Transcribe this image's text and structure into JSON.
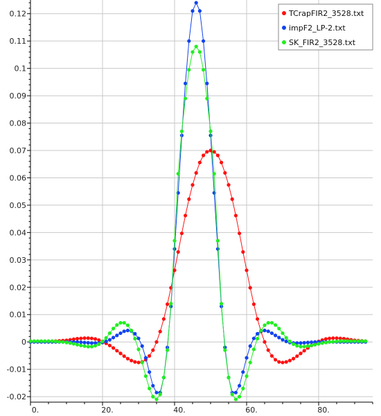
{
  "chart_data": {
    "type": "line",
    "title": "",
    "xlabel": "",
    "ylabel": "",
    "xlim": [
      0,
      95
    ],
    "ylim": [
      -0.022,
      0.125
    ],
    "grid": true,
    "legend_position": "top-right",
    "x_ticks": [
      {
        "value": 0,
        "label": "0."
      },
      {
        "value": 20,
        "label": "20."
      },
      {
        "value": 40,
        "label": "40."
      },
      {
        "value": 60,
        "label": "60."
      },
      {
        "value": 80,
        "label": "80."
      }
    ],
    "y_ticks": [
      {
        "value": -0.02,
        "label": "-0.02"
      },
      {
        "value": -0.01,
        "label": "-0.01"
      },
      {
        "value": 0,
        "label": "0"
      },
      {
        "value": 0.01,
        "label": "0.01"
      },
      {
        "value": 0.02,
        "label": "0.02"
      },
      {
        "value": 0.03,
        "label": "0.03"
      },
      {
        "value": 0.04,
        "label": "0.04"
      },
      {
        "value": 0.05,
        "label": "0.05"
      },
      {
        "value": 0.06,
        "label": "0.06"
      },
      {
        "value": 0.07,
        "label": "0.07"
      },
      {
        "value": 0.08,
        "label": "0.08"
      },
      {
        "value": 0.09,
        "label": "0.09"
      },
      {
        "value": 0.1,
        "label": "0.1"
      },
      {
        "value": 0.11,
        "label": "0.11"
      },
      {
        "value": 0.12,
        "label": "0.12"
      }
    ],
    "x": [
      0,
      1,
      2,
      3,
      4,
      5,
      6,
      7,
      8,
      9,
      10,
      11,
      12,
      13,
      14,
      15,
      16,
      17,
      18,
      19,
      20,
      21,
      22,
      23,
      24,
      25,
      26,
      27,
      28,
      29,
      30,
      31,
      32,
      33,
      34,
      35,
      36,
      37,
      38,
      39,
      40,
      41,
      42,
      43,
      44,
      45,
      46,
      47,
      48,
      49,
      50,
      51,
      52,
      53,
      54,
      55,
      56,
      57,
      58,
      59,
      60,
      61,
      62,
      63,
      64,
      65,
      66,
      67,
      68,
      69,
      70,
      71,
      72,
      73,
      74,
      75,
      76,
      77,
      78,
      79,
      80,
      81,
      82,
      83,
      84,
      85,
      86,
      87,
      88,
      89,
      90,
      91,
      92,
      93
    ],
    "series": [
      {
        "name": "TCrapFIR2_3528.txt",
        "color": "#ff1111",
        "values": [
          0.0,
          0.0001,
          0.0001,
          0.0001,
          0.0001,
          0.0002,
          0.0002,
          0.0003,
          0.0004,
          0.0005,
          0.0006,
          0.0008,
          0.001,
          0.0012,
          0.0013,
          0.0014,
          0.0014,
          0.0013,
          0.0011,
          0.0007,
          0.0002,
          -0.0005,
          -0.0013,
          -0.0022,
          -0.0032,
          -0.0042,
          -0.0052,
          -0.0061,
          -0.0068,
          -0.0073,
          -0.0075,
          -0.0073,
          -0.0065,
          -0.0051,
          -0.003,
          0.0,
          0.0038,
          0.0084,
          0.0138,
          0.0198,
          0.0262,
          0.0329,
          0.0397,
          0.0462,
          0.0522,
          0.0574,
          0.0618,
          0.0656,
          0.0682,
          0.0695,
          0.07,
          0.0695,
          0.0682,
          0.0656,
          0.0618,
          0.0574,
          0.0522,
          0.0462,
          0.0397,
          0.0329,
          0.0262,
          0.0198,
          0.0138,
          0.0084,
          0.0038,
          0.0,
          -0.003,
          -0.0051,
          -0.0065,
          -0.0073,
          -0.0075,
          -0.0073,
          -0.0068,
          -0.0061,
          -0.0052,
          -0.0042,
          -0.0032,
          -0.0022,
          -0.0013,
          -0.0005,
          0.0002,
          0.0007,
          0.0011,
          0.0013,
          0.0014,
          0.0014,
          0.0013,
          0.0012,
          0.001,
          0.0008,
          0.0006,
          0.0005,
          0.0004,
          0.0003
        ]
      },
      {
        "name": "impF2_LP-2.txt",
        "color": "#1144ee",
        "values": [
          0.0,
          0.0,
          0.0,
          0.0,
          0.0,
          0.0,
          0.0,
          0.0,
          0.0,
          0.0,
          0.0,
          0.0,
          0.0,
          0.0,
          -0.0001,
          -0.0002,
          -0.0003,
          -0.0004,
          -0.0004,
          -0.0004,
          -0.0002,
          0.0002,
          0.0008,
          0.0016,
          0.0024,
          0.0032,
          0.0039,
          0.0042,
          0.004,
          0.003,
          0.0013,
          -0.0015,
          -0.0058,
          -0.011,
          -0.016,
          -0.0185,
          -0.0185,
          -0.013,
          -0.002,
          0.013,
          0.034,
          0.0545,
          0.0755,
          0.0945,
          0.11,
          0.121,
          0.124,
          0.121,
          0.11,
          0.0945,
          0.0755,
          0.0545,
          0.034,
          0.013,
          -0.002,
          -0.013,
          -0.0185,
          -0.0185,
          -0.016,
          -0.011,
          -0.0058,
          -0.0015,
          0.0013,
          0.003,
          0.004,
          0.0042,
          0.0039,
          0.0032,
          0.0024,
          0.0016,
          0.0008,
          0.0002,
          -0.0002,
          -0.0004,
          -0.0004,
          -0.0004,
          -0.0003,
          -0.0002,
          -0.0001,
          0.0,
          0.0,
          0.0,
          0.0,
          0.0,
          0.0,
          0.0,
          0.0,
          0.0,
          0.0,
          0.0,
          0.0,
          0.0,
          0.0,
          0.0
        ]
      },
      {
        "name": "SK_FIR2_3528.txt",
        "color": "#22ee22",
        "values": [
          0.0003,
          0.0003,
          0.0003,
          0.0003,
          0.0003,
          0.0003,
          0.0003,
          0.0002,
          0.0001,
          0.0,
          -0.0002,
          -0.0004,
          -0.0007,
          -0.001,
          -0.0013,
          -0.0015,
          -0.0017,
          -0.0017,
          -0.0014,
          -0.0008,
          0.0002,
          0.0015,
          0.0032,
          0.0049,
          0.0062,
          0.007,
          0.007,
          0.0061,
          0.0042,
          0.0012,
          -0.0027,
          -0.0075,
          -0.0125,
          -0.017,
          -0.02,
          -0.021,
          -0.0192,
          -0.013,
          -0.003,
          0.014,
          0.037,
          0.0615,
          0.077,
          0.089,
          0.0995,
          0.106,
          0.108,
          0.106,
          0.0995,
          0.089,
          0.077,
          0.0615,
          0.037,
          0.014,
          -0.003,
          -0.013,
          -0.0192,
          -0.021,
          -0.02,
          -0.017,
          -0.0125,
          -0.0075,
          -0.0027,
          0.0012,
          0.0042,
          0.0061,
          0.007,
          0.007,
          0.0062,
          0.0049,
          0.0032,
          0.0015,
          0.0002,
          -0.0008,
          -0.0014,
          -0.0017,
          -0.0017,
          -0.0015,
          -0.0013,
          -0.001,
          -0.0007,
          -0.0004,
          -0.0002,
          0.0,
          0.0001,
          0.0002,
          0.0003,
          0.0003,
          0.0003,
          0.0003,
          0.0003,
          0.0003,
          0.0003,
          0.0003
        ]
      }
    ]
  }
}
